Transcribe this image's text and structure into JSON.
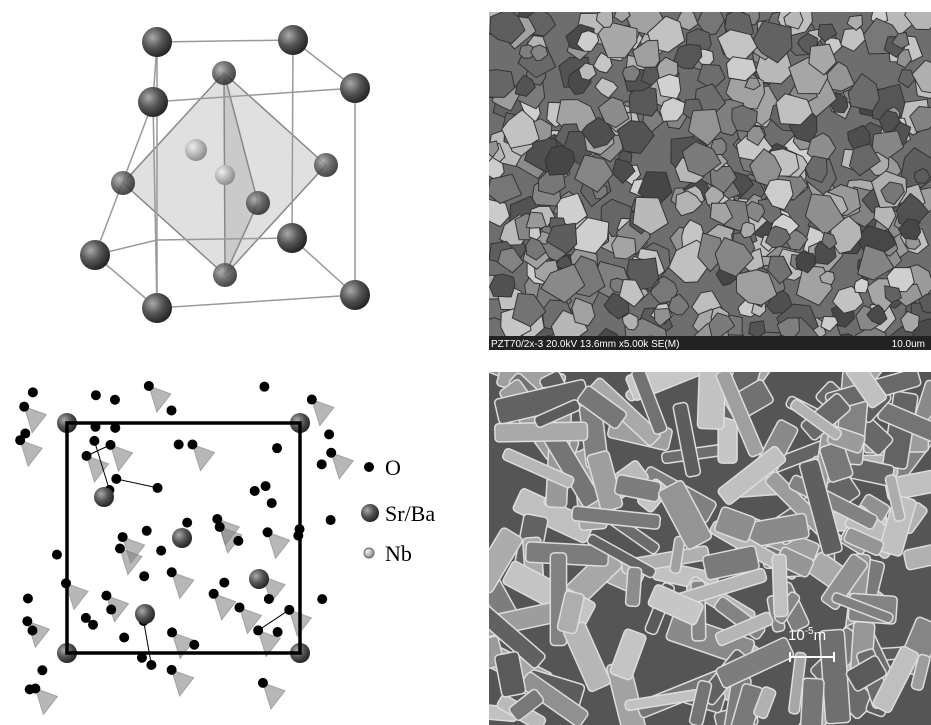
{
  "sem_top": {
    "caption": "PZT70/2x-3 20.0kV 13.6mm x5.00k SE(M)",
    "scale": "10.0um"
  },
  "legend": {
    "items": [
      "O",
      "Sr/Ba",
      "Nb"
    ]
  },
  "sem_bottom": {
    "scale_bar": {
      "base": "10",
      "exponent": "-5",
      "unit": "m"
    }
  }
}
